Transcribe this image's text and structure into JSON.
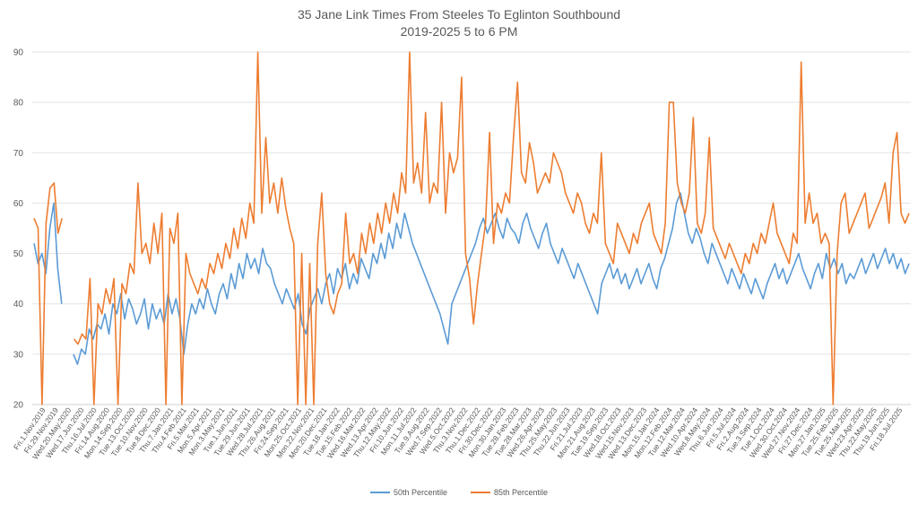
{
  "chart_data": {
    "type": "line",
    "title": "35 Jane Link Times From Steeles To Eglinton Southbound",
    "subtitle": "2019-2025 5 to 6 PM",
    "xlabel": "",
    "ylabel": "",
    "ylim": [
      20,
      90
    ],
    "yticks": [
      20,
      30,
      40,
      50,
      60,
      70,
      80,
      90
    ],
    "grid": true,
    "legend_position": "bottom",
    "x_tick_labels": [
      "Fri.1.Nov.2019",
      "Fri.29.Nov.2019",
      "Wed.20.May.2020",
      "Wed.17.Jun.2020",
      "Thu.16.Jul.2020",
      "Fri.14.Aug.2020",
      "Mon.14.Sep.2020",
      "Tue.13.Oct.2020",
      "Tue.10.Nov.2020",
      "Tue.8.Dec.2020",
      "Thu.7.Jan.2021",
      "Thu.4.Feb.2021",
      "Fri.5.Mar.2021",
      "Mon.5.Apr.2021",
      "Mon.3.May.2021",
      "Tue.1.Jun.2021",
      "Tue.29.Jun.2021",
      "Wed.28.Jul.2021",
      "Thu.26.Aug.2021",
      "Fri.24.Sep.2021",
      "Mon.25.Oct.2021",
      "Mon.22.Nov.2021",
      "Mon.20.Dec.2021",
      "Tue.18.Jan.2022",
      "Tue.15.Feb.2022",
      "Wed.16.Mar.2022",
      "Wed.13.Apr.2022",
      "Thu.12.May.2022",
      "Fri.10.Jun.2022",
      "Mon.11.Jul.2022",
      "Tue.9.Aug.2022",
      "Wed.7.Sep.2022",
      "Wed.5.Oct.2022",
      "Thu.3.Nov.2022",
      "Thu.1.Dec.2022",
      "Fri.30.Dec.2022",
      "Mon.30.Jan.2023",
      "Tue.28.Feb.2023",
      "Tue.28.Mar.2023",
      "Wed.26.Apr.2023",
      "Thu.25.May.2023",
      "Thu.22.Jun.2023",
      "Fri.21.Jul.2023",
      "Mon.21.Aug.2023",
      "Tue.19.Sep.2023",
      "Wed.18.Oct.2023",
      "Wed.15.Nov.2023",
      "Wed.13.Dec.2023",
      "Mon.15.Jan.2024",
      "Mon.12.Feb.2024",
      "Tue.12.Mar.2024",
      "Wed.10.Apr.2024",
      "Wed.8.May.2024",
      "Thu.6.Jun.2024",
      "Fri.5.Jul.2024",
      "Fri.2.Aug.2024",
      "Tue.3.Sep.2024",
      "Tue.1.Oct.2024",
      "Wed.30.Oct.2024",
      "Wed.27.Nov.2024",
      "Fri.27.Dec.2024",
      "Mon.27.Jan.2025",
      "Tue.25.Feb.2025",
      "Tue.25.Mar.2025",
      "Wed.23.Apr.2025",
      "Thu.22.May.2025",
      "Thu.19.Jun.2025",
      "Fri.18.Jul.2025"
    ],
    "series": [
      {
        "name": "50th Percentile",
        "color": "#5B9BD5",
        "values": [
          52,
          48,
          50,
          46,
          55,
          60,
          47,
          40,
          null,
          null,
          30,
          28,
          31,
          30,
          35,
          33,
          36,
          35,
          38,
          34,
          40,
          38,
          42,
          37,
          41,
          39,
          36,
          38,
          41,
          35,
          40,
          37,
          39,
          36,
          42,
          38,
          41,
          37,
          30,
          36,
          40,
          38,
          41,
          39,
          43,
          40,
          38,
          42,
          44,
          41,
          46,
          43,
          48,
          45,
          50,
          47,
          49,
          46,
          51,
          48,
          47,
          44,
          42,
          40,
          43,
          41,
          39,
          42,
          36,
          34,
          39,
          41,
          43,
          40,
          44,
          46,
          42,
          47,
          45,
          48,
          43,
          46,
          44,
          49,
          47,
          45,
          50,
          48,
          52,
          49,
          54,
          51,
          56,
          53,
          58,
          55,
          52,
          50,
          48,
          46,
          44,
          42,
          40,
          38,
          35,
          32,
          40,
          42,
          44,
          46,
          48,
          50,
          52,
          55,
          57,
          54,
          56,
          58,
          55,
          53,
          57,
          55,
          54,
          52,
          56,
          58,
          55,
          53,
          51,
          54,
          56,
          52,
          50,
          48,
          51,
          49,
          47,
          45,
          48,
          46,
          44,
          42,
          40,
          38,
          44,
          46,
          48,
          45,
          47,
          44,
          46,
          43,
          45,
          47,
          44,
          46,
          48,
          45,
          43,
          47,
          49,
          52,
          55,
          60,
          62,
          58,
          54,
          52,
          55,
          53,
          50,
          48,
          52,
          50,
          48,
          46,
          44,
          47,
          45,
          43,
          46,
          44,
          42,
          45,
          43,
          41,
          44,
          46,
          48,
          45,
          47,
          44,
          46,
          48,
          50,
          47,
          45,
          43,
          46,
          48,
          45,
          50,
          47,
          49,
          46,
          48,
          44,
          46,
          45,
          47,
          49,
          46,
          48,
          50,
          47,
          49,
          51,
          48,
          50,
          47,
          49,
          46,
          48
        ]
      },
      {
        "name": "85th Percentile",
        "color": "#ED7D31",
        "values": [
          57,
          55,
          20,
          56,
          63,
          64,
          54,
          57,
          null,
          null,
          33,
          32,
          34,
          33,
          45,
          20,
          40,
          38,
          43,
          40,
          45,
          20,
          44,
          42,
          48,
          46,
          64,
          50,
          52,
          48,
          56,
          50,
          58,
          20,
          55,
          52,
          58,
          20,
          50,
          46,
          44,
          42,
          45,
          43,
          48,
          46,
          50,
          47,
          52,
          49,
          55,
          51,
          57,
          53,
          60,
          56,
          90,
          58,
          73,
          60,
          64,
          58,
          65,
          59,
          55,
          52,
          20,
          50,
          20,
          48,
          20,
          52,
          62,
          46,
          40,
          38,
          42,
          44,
          58,
          48,
          50,
          46,
          54,
          50,
          56,
          52,
          58,
          54,
          60,
          56,
          62,
          58,
          66,
          62,
          90,
          64,
          68,
          62,
          78,
          60,
          64,
          62,
          80,
          58,
          70,
          66,
          69,
          85,
          50,
          45,
          36,
          44,
          50,
          56,
          74,
          52,
          60,
          58,
          62,
          60,
          73,
          84,
          66,
          64,
          72,
          68,
          62,
          64,
          66,
          64,
          70,
          68,
          66,
          62,
          60,
          58,
          62,
          60,
          56,
          54,
          58,
          56,
          70,
          52,
          50,
          48,
          56,
          54,
          52,
          50,
          54,
          52,
          56,
          58,
          60,
          54,
          52,
          50,
          56,
          80,
          80,
          64,
          60,
          58,
          62,
          77,
          56,
          54,
          58,
          73,
          55,
          53,
          51,
          49,
          52,
          50,
          48,
          46,
          50,
          48,
          52,
          50,
          54,
          52,
          56,
          60,
          54,
          52,
          50,
          48,
          54,
          52,
          88,
          56,
          62,
          56,
          58,
          52,
          54,
          52,
          20,
          50,
          60,
          62,
          54,
          56,
          58,
          60,
          62,
          55,
          57,
          59,
          61,
          64,
          56,
          70,
          74,
          58,
          56,
          58
        ]
      }
    ]
  }
}
